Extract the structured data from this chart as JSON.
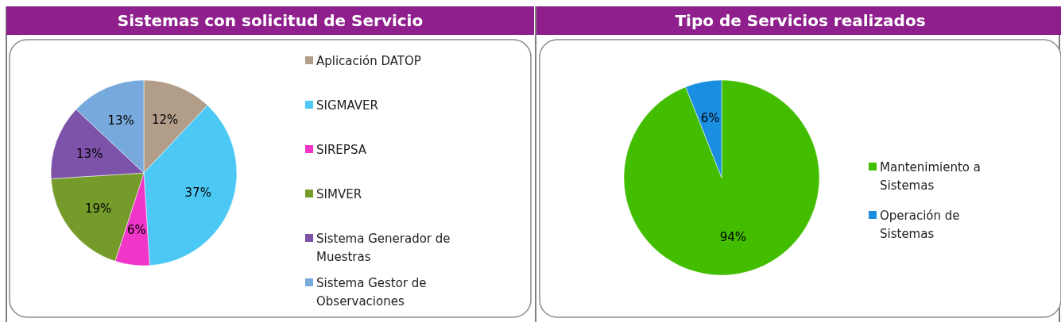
{
  "chart_data": [
    {
      "type": "pie",
      "title": "Sistemas con solicitud de Servicio",
      "categories": [
        "Aplicación DATOP",
        "SIGMAVER",
        "SIREPSA",
        "SIMVER",
        "Sistema Generador de Muestras",
        "Sistema Gestor de Observaciones"
      ],
      "values": [
        12,
        37,
        6,
        19,
        13,
        13
      ],
      "value_labels": [
        "12%",
        "37%",
        "6%",
        "19%",
        "13%",
        "13%"
      ],
      "colors": [
        "#b29d89",
        "#4cc8f4",
        "#f035c9",
        "#759b2a",
        "#7d52a9",
        "#78a9dc"
      ],
      "legend": "right"
    },
    {
      "type": "pie",
      "title": "Tipo de Servicios realizados",
      "categories": [
        "Mantenimiento a Sistemas",
        "Operación de Sistemas"
      ],
      "values": [
        94,
        6
      ],
      "value_labels": [
        "94%",
        "6%"
      ],
      "colors": [
        "#43bd00",
        "#1a8ee0"
      ],
      "legend": "right"
    }
  ]
}
